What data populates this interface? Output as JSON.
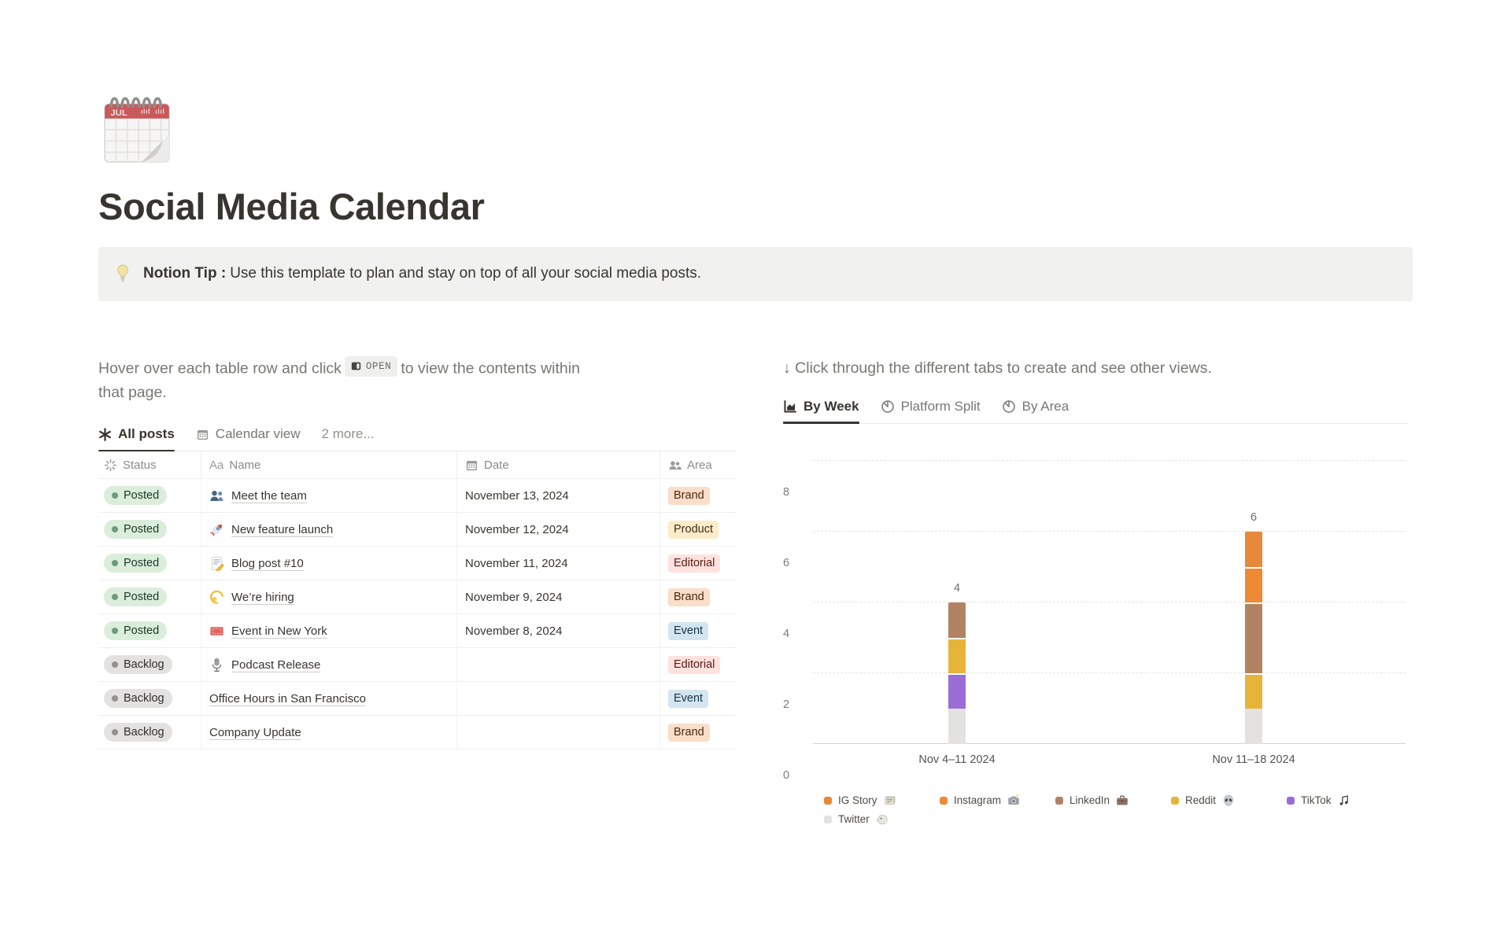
{
  "page": {
    "title": "Social Media Calendar",
    "icon": "spiral-calendar-icon"
  },
  "callout": {
    "icon": "lightbulb-icon",
    "bold": "Notion Tip :",
    "text": "Use this template to plan and stay on top of all your social media posts."
  },
  "left": {
    "instruction": {
      "before": "Hover over each table row and click",
      "chip": "OPEN",
      "after": "to view the contents within that page."
    },
    "tabs": [
      {
        "label": "All posts",
        "icon": "asterisk-icon",
        "active": true
      },
      {
        "label": "Calendar view",
        "icon": "calendar-icon",
        "active": false
      },
      {
        "label": "2 more...",
        "icon": null,
        "active": false
      }
    ],
    "table": {
      "columns": [
        {
          "label": "Status",
          "icon": "status-spinner-icon"
        },
        {
          "label": "Name",
          "icon": "aa-icon"
        },
        {
          "label": "Date",
          "icon": "calendar-icon"
        },
        {
          "label": "Area",
          "icon": "people-icon"
        }
      ],
      "rows": [
        {
          "status": "Posted",
          "status_color": "green",
          "icon": "people-blue-icon",
          "name": "Meet the team",
          "date": "November 13, 2024",
          "area": "Brand",
          "area_color": "orange"
        },
        {
          "status": "Posted",
          "status_color": "green",
          "icon": "rocket-icon",
          "name": "New feature launch",
          "date": "November 12, 2024",
          "area": "Product",
          "area_color": "yellow"
        },
        {
          "status": "Posted",
          "status_color": "green",
          "icon": "memo-icon",
          "name": "Blog post #10",
          "date": "November 11, 2024",
          "area": "Editorial",
          "area_color": "red"
        },
        {
          "status": "Posted",
          "status_color": "green",
          "icon": "dizzy-icon",
          "name": "We’re hiring",
          "date": "November 9, 2024",
          "area": "Brand",
          "area_color": "orange"
        },
        {
          "status": "Posted",
          "status_color": "green",
          "icon": "ticket-icon",
          "name": "Event in New York",
          "date": "November 8, 2024",
          "area": "Event",
          "area_color": "blue"
        },
        {
          "status": "Backlog",
          "status_color": "gray",
          "icon": "microphone-icon",
          "name": "Podcast Release",
          "date": "",
          "area": "Editorial",
          "area_color": "red"
        },
        {
          "status": "Backlog",
          "status_color": "gray",
          "icon": null,
          "name": "Office Hours in San Francisco",
          "date": "",
          "area": "Event",
          "area_color": "blue"
        },
        {
          "status": "Backlog",
          "status_color": "gray",
          "icon": null,
          "name": "Company Update",
          "date": "",
          "area": "Brand",
          "area_color": "orange"
        }
      ]
    }
  },
  "right": {
    "instruction": "↓ Click through the different tabs to create and see other views.",
    "tabs": [
      {
        "label": "By Week",
        "icon": "bar-chart-icon",
        "active": true
      },
      {
        "label": "Platform Split",
        "icon": "pie-chart-icon",
        "active": false
      },
      {
        "label": "By Area",
        "icon": "pie-chart-icon",
        "active": false
      }
    ]
  },
  "chart_data": {
    "type": "bar",
    "stacked": true,
    "title": "",
    "categories": [
      "Nov 4–11 2024",
      "Nov 11–18 2024"
    ],
    "series": [
      {
        "name": "IG Story",
        "icon": "newspaper-icon",
        "color": "#E8883A",
        "values": [
          0,
          1
        ]
      },
      {
        "name": "Instagram",
        "icon": "camera-icon",
        "color": "#ED8A33",
        "values": [
          0,
          1
        ]
      },
      {
        "name": "LinkedIn",
        "icon": "briefcase-icon",
        "color": "#B28363",
        "values": [
          1,
          2
        ]
      },
      {
        "name": "Reddit",
        "icon": "alien-icon",
        "color": "#E7B43A",
        "values": [
          1,
          1
        ]
      },
      {
        "name": "TikTok",
        "icon": "music-icon",
        "color": "#9A6DD6",
        "values": [
          1,
          0
        ]
      },
      {
        "name": "Twitter",
        "icon": "bird-icon",
        "color": "#E3E2E0",
        "values": [
          1,
          1
        ]
      }
    ],
    "stack_order": [
      "Twitter",
      "TikTok",
      "Reddit",
      "LinkedIn",
      "Instagram",
      "IG Story"
    ],
    "totals": [
      4,
      6
    ],
    "ylim": [
      0,
      8
    ],
    "yticks": [
      0,
      2,
      4,
      6,
      8
    ],
    "grid": "dotted-horizontal",
    "legend_position": "bottom"
  },
  "colors": {
    "status": {
      "green": {
        "bg": "#DBEDDB",
        "dot": "#6C9B7D",
        "text": "#1C3829"
      },
      "gray": {
        "bg": "#E3E2E0",
        "dot": "#91918E",
        "text": "#32302C"
      }
    },
    "area": {
      "orange": {
        "bg": "#FADEC9",
        "text": "#49290E"
      },
      "yellow": {
        "bg": "#FDECC8",
        "text": "#402C1B"
      },
      "red": {
        "bg": "#FFE2DD",
        "text": "#5D1715"
      },
      "blue": {
        "bg": "#D3E5EF",
        "text": "#183347"
      }
    }
  }
}
